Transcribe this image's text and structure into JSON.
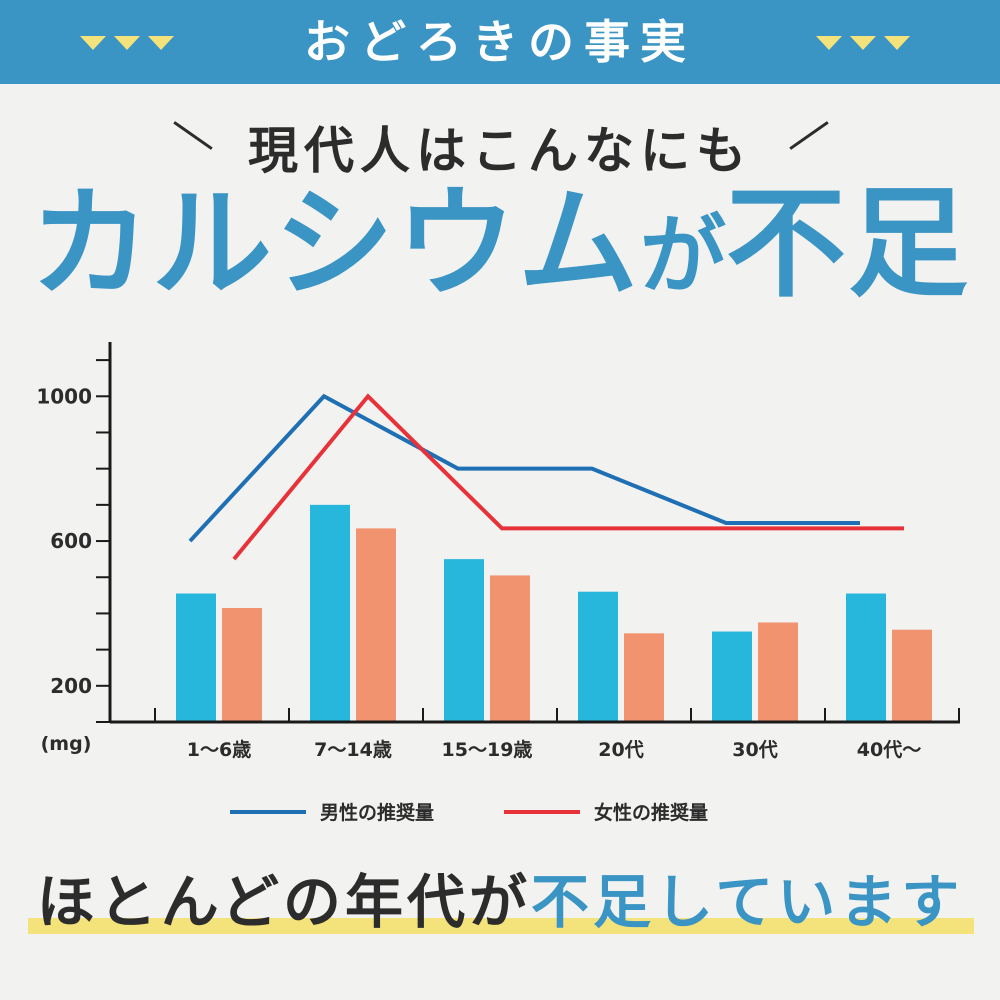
{
  "banner": {
    "title": "おどろきの事実"
  },
  "header": {
    "subtitle": "現代人はこんなにも",
    "headline_main": "カルシウム",
    "headline_particle": "が",
    "headline_end": "不足"
  },
  "footer": {
    "text_start": "ほとんどの年代が",
    "text_highlight": "不足しています"
  },
  "colors": {
    "banner": "#3a94c4",
    "accent_yellow": "#f4e27a",
    "male_line": "#1f6fb4",
    "female_line": "#e8323a",
    "male_bar": "#27b6dc",
    "female_bar": "#f0936e"
  },
  "chart_data": {
    "type": "bar",
    "categories": [
      "1～6歳",
      "7～14歳",
      "15～19歳",
      "20代",
      "30代",
      "40代～"
    ],
    "y_unit": "(mg)",
    "yticks": [
      200,
      600,
      1000
    ],
    "ylim": [
      100,
      1150
    ],
    "bar_series": [
      {
        "values": [
          455,
          700,
          550,
          460,
          350,
          455
        ]
      },
      {
        "values": [
          415,
          635,
          505,
          345,
          375,
          355
        ]
      }
    ],
    "line_series": [
      {
        "name": "男性の推奨量",
        "values": [
          600,
          1000,
          800,
          800,
          650,
          650
        ]
      },
      {
        "name": "女性の推奨量",
        "values": [
          550,
          1000,
          635,
          635,
          635,
          635
        ]
      }
    ],
    "grid": false,
    "legend": "bottom"
  }
}
